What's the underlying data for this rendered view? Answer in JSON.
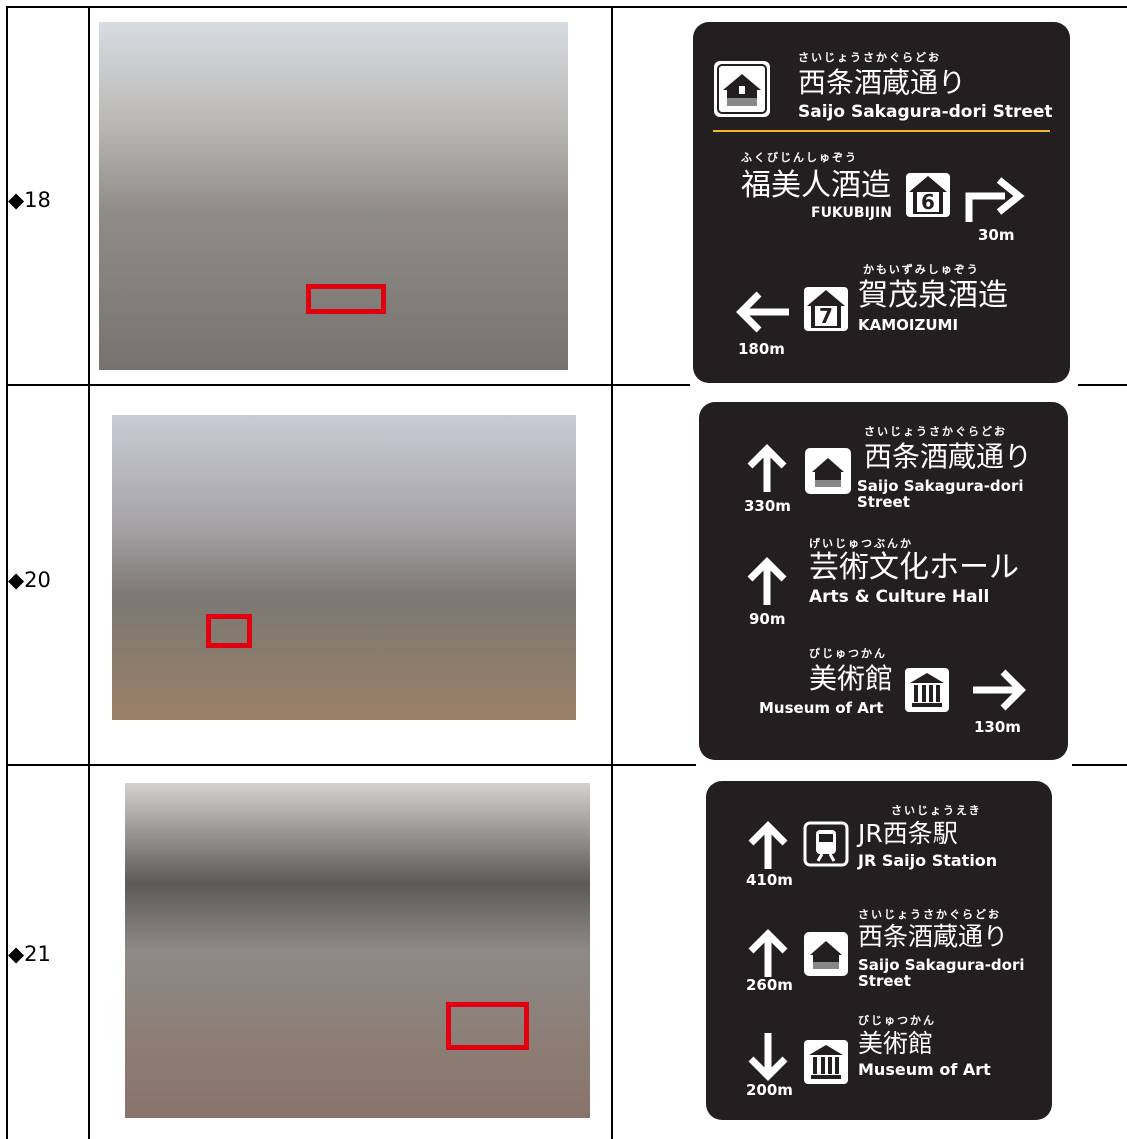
{
  "rows": [
    {
      "label": "◆18",
      "sign": {
        "items": [
          {
            "ruby": "さいじょうさかぐらどお",
            "name": "西条酒蔵通り",
            "english": "Saijo Sakagura-dori Street"
          },
          {
            "ruby": "ふくびじんしゅぞう",
            "name": "福美人酒造",
            "english": "FUKUBIJIN",
            "number": "6",
            "distance": "30m"
          },
          {
            "ruby": "かもいずみしゅぞう",
            "name": "賀茂泉酒造",
            "english": "KAMOIZUMI",
            "number": "7",
            "distance": "180m"
          }
        ]
      }
    },
    {
      "label": "◆20",
      "sign": {
        "items": [
          {
            "ruby": "さいじょうさかぐらどお",
            "name": "西条酒蔵通り",
            "english": "Saijo Sakagura-dori Street",
            "distance": "330m"
          },
          {
            "ruby": "げいじゅつぶんか",
            "name": "芸術文化ホール",
            "english": "Arts & Culture Hall",
            "distance": "90m"
          },
          {
            "ruby": "びじゅつかん",
            "name": "美術館",
            "english": "Museum of Art",
            "distance": "130m"
          }
        ]
      }
    },
    {
      "label": "◆21",
      "sign": {
        "items": [
          {
            "ruby": "さいじょうえき",
            "name": "JR西条駅",
            "english": "JR Saijo Station",
            "distance": "410m"
          },
          {
            "ruby": "さいじょうさかぐらどお",
            "name": "西条酒蔵通り",
            "english": "Saijo Sakagura-dori Street",
            "distance": "260m"
          },
          {
            "ruby": "びじゅつかん",
            "name": "美術館",
            "english": "Museum of Art",
            "distance": "200m"
          }
        ]
      }
    }
  ]
}
